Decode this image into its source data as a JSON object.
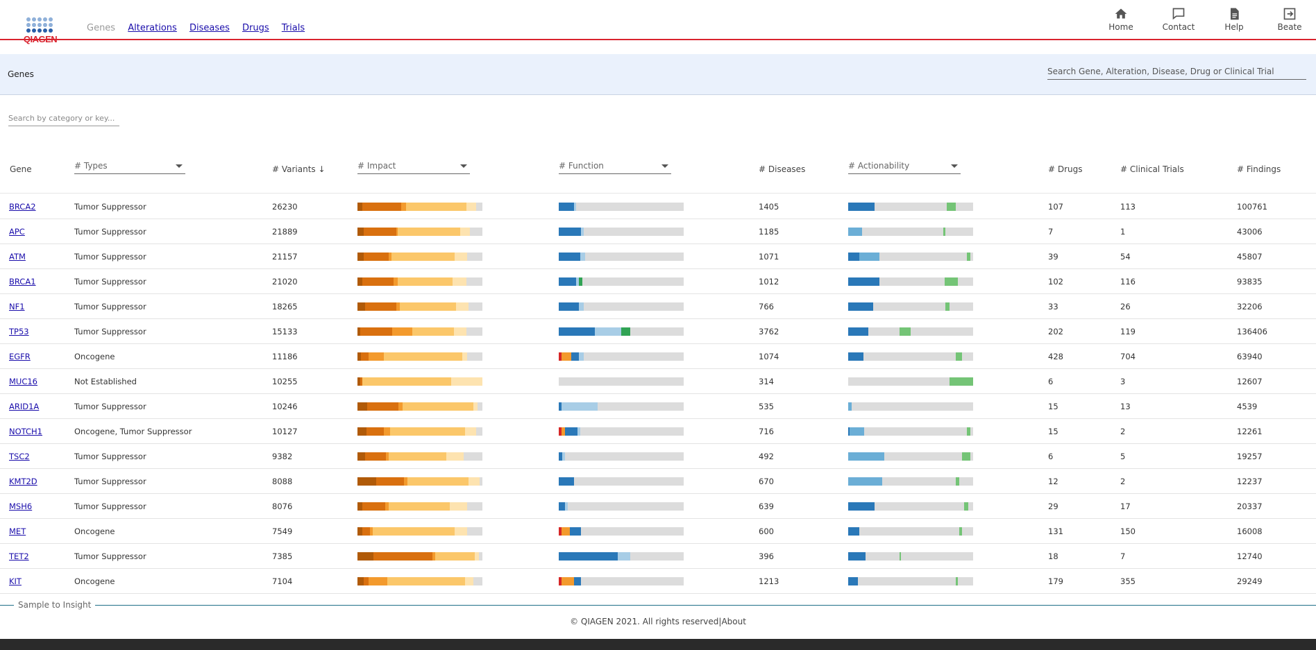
{
  "brand": {
    "logo_text": "QIAGEN",
    "accent": "#d9232e"
  },
  "nav": {
    "current": "Genes",
    "links": [
      "Alterations",
      "Diseases",
      "Drugs",
      "Trials"
    ]
  },
  "top_actions": [
    {
      "label": "Home",
      "icon": "home-icon"
    },
    {
      "label": "Contact",
      "icon": "chat-icon"
    },
    {
      "label": "Help",
      "icon": "document-icon"
    },
    {
      "label": "Beate",
      "icon": "logout-icon"
    }
  ],
  "subheader": {
    "title": "Genes",
    "search_placeholder": "Search Gene, Alteration, Disease, Drug or Clinical Trial"
  },
  "filter": {
    "placeholder": "Search by category or key..."
  },
  "table": {
    "columns": {
      "gene": "Gene",
      "types": "# Types",
      "variants": "# Variants",
      "impact": "# Impact",
      "function": "# Function",
      "diseases": "# Diseases",
      "actionability": "# Actionability",
      "drugs": "# Drugs",
      "trials": "# Clinical Trials",
      "findings": "# Findings"
    },
    "sort_indicator": "↓",
    "rows": [
      {
        "gene": "BRCA2",
        "type": "Tumor Suppressor",
        "variants": "26230",
        "diseases": "1405",
        "drugs": "107",
        "trials": "113",
        "findings": "100761",
        "impact": [
          [
            0.04,
            "#b05a08"
          ],
          [
            0.31,
            "#d9700f"
          ],
          [
            0.04,
            "#f39a2d"
          ],
          [
            0.48,
            "#fbc76a"
          ],
          [
            0.08,
            "#fde3b0"
          ]
        ],
        "function": [
          [
            0.12,
            "#2a78b8"
          ],
          [
            0.02,
            "#a8cde6"
          ]
        ],
        "action": [
          [
            0.21,
            "#2a78b8"
          ],
          [
            0.58,
            "#dcdcdc"
          ],
          [
            0.07,
            "#74c476"
          ]
        ]
      },
      {
        "gene": "APC",
        "type": "Tumor Suppressor",
        "variants": "21889",
        "diseases": "1185",
        "drugs": "7",
        "trials": "1",
        "findings": "43006",
        "impact": [
          [
            0.05,
            "#b05a08"
          ],
          [
            0.26,
            "#d9700f"
          ],
          [
            0.01,
            "#f39a2d"
          ],
          [
            0.5,
            "#fbc76a"
          ],
          [
            0.08,
            "#fde3b0"
          ]
        ],
        "function": [
          [
            0.18,
            "#2a78b8"
          ],
          [
            0.02,
            "#a8cde6"
          ]
        ],
        "action": [
          [
            0.11,
            "#6baed6"
          ],
          [
            0.65,
            "#dcdcdc"
          ],
          [
            0.02,
            "#74c476"
          ]
        ]
      },
      {
        "gene": "ATM",
        "type": "Tumor Suppressor",
        "variants": "21157",
        "diseases": "1071",
        "drugs": "39",
        "trials": "54",
        "findings": "45807",
        "impact": [
          [
            0.05,
            "#b05a08"
          ],
          [
            0.2,
            "#d9700f"
          ],
          [
            0.02,
            "#f39a2d"
          ],
          [
            0.51,
            "#fbc76a"
          ],
          [
            0.1,
            "#fde3b0"
          ]
        ],
        "function": [
          [
            0.17,
            "#2a78b8"
          ],
          [
            0.04,
            "#a8cde6"
          ]
        ],
        "action": [
          [
            0.09,
            "#2a78b8"
          ],
          [
            0.16,
            "#6baed6"
          ],
          [
            0.7,
            "#dcdcdc"
          ],
          [
            0.03,
            "#74c476"
          ]
        ]
      },
      {
        "gene": "BRCA1",
        "type": "Tumor Suppressor",
        "variants": "21020",
        "diseases": "1012",
        "drugs": "102",
        "trials": "116",
        "findings": "93835",
        "impact": [
          [
            0.04,
            "#b05a08"
          ],
          [
            0.25,
            "#d9700f"
          ],
          [
            0.03,
            "#f39a2d"
          ],
          [
            0.44,
            "#fbc76a"
          ],
          [
            0.11,
            "#fde3b0"
          ]
        ],
        "function": [
          [
            0.14,
            "#2a78b8"
          ],
          [
            0.02,
            "#a8cde6"
          ],
          [
            0.03,
            "#31a354"
          ]
        ],
        "action": [
          [
            0.25,
            "#2a78b8"
          ],
          [
            0.52,
            "#dcdcdc"
          ],
          [
            0.11,
            "#74c476"
          ]
        ]
      },
      {
        "gene": "NF1",
        "type": "Tumor Suppressor",
        "variants": "18265",
        "diseases": "766",
        "drugs": "33",
        "trials": "26",
        "findings": "32206",
        "impact": [
          [
            0.06,
            "#b05a08"
          ],
          [
            0.25,
            "#d9700f"
          ],
          [
            0.03,
            "#f39a2d"
          ],
          [
            0.45,
            "#fbc76a"
          ],
          [
            0.1,
            "#fde3b0"
          ]
        ],
        "function": [
          [
            0.16,
            "#2a78b8"
          ],
          [
            0.04,
            "#a8cde6"
          ]
        ],
        "action": [
          [
            0.2,
            "#2a78b8"
          ],
          [
            0.58,
            "#dcdcdc"
          ],
          [
            0.03,
            "#74c476"
          ]
        ]
      },
      {
        "gene": "TP53",
        "type": "Tumor Suppressor",
        "variants": "15133",
        "diseases": "3762",
        "drugs": "202",
        "trials": "119",
        "findings": "136406",
        "impact": [
          [
            0.02,
            "#b05a08"
          ],
          [
            0.26,
            "#d9700f"
          ],
          [
            0.16,
            "#f39a2d"
          ],
          [
            0.33,
            "#fbc76a"
          ],
          [
            0.1,
            "#fde3b0"
          ]
        ],
        "function": [
          [
            0.29,
            "#2a78b8"
          ],
          [
            0.21,
            "#a8cde6"
          ],
          [
            0.07,
            "#31a354"
          ]
        ],
        "action": [
          [
            0.16,
            "#2a78b8"
          ],
          [
            0.25,
            "#dcdcdc"
          ],
          [
            0.09,
            "#74c476"
          ]
        ]
      },
      {
        "gene": "EGFR",
        "type": "Oncogene",
        "variants": "11186",
        "diseases": "1074",
        "drugs": "428",
        "trials": "704",
        "findings": "63940",
        "impact": [
          [
            0.03,
            "#b05a08"
          ],
          [
            0.06,
            "#d9700f"
          ],
          [
            0.12,
            "#f39a2d"
          ],
          [
            0.63,
            "#fbc76a"
          ],
          [
            0.04,
            "#fde3b0"
          ]
        ],
        "function": [
          [
            0.02,
            "#d62728"
          ],
          [
            0.08,
            "#f39a2d"
          ],
          [
            0.06,
            "#2a78b8"
          ],
          [
            0.04,
            "#a8cde6"
          ]
        ],
        "action": [
          [
            0.12,
            "#2a78b8"
          ],
          [
            0.74,
            "#dcdcdc"
          ],
          [
            0.05,
            "#74c476"
          ]
        ]
      },
      {
        "gene": "MUC16",
        "type": "Not Established",
        "variants": "10255",
        "diseases": "314",
        "drugs": "6",
        "trials": "3",
        "findings": "12607",
        "impact": [
          [
            0.02,
            "#b05a08"
          ],
          [
            0.02,
            "#d9700f"
          ],
          [
            0.71,
            "#fbc76a"
          ],
          [
            0.25,
            "#fde3b0"
          ]
        ],
        "function": [],
        "action": [
          [
            0.81,
            "#dcdcdc"
          ],
          [
            0.19,
            "#74c476"
          ]
        ]
      },
      {
        "gene": "ARID1A",
        "type": "Tumor Suppressor",
        "variants": "10246",
        "diseases": "535",
        "drugs": "15",
        "trials": "13",
        "findings": "4539",
        "impact": [
          [
            0.08,
            "#b05a08"
          ],
          [
            0.25,
            "#d9700f"
          ],
          [
            0.03,
            "#f39a2d"
          ],
          [
            0.57,
            "#fbc76a"
          ],
          [
            0.03,
            "#fde3b0"
          ]
        ],
        "function": [
          [
            0.02,
            "#2a78b8"
          ],
          [
            0.29,
            "#a8cde6"
          ]
        ],
        "action": [
          [
            0.03,
            "#6baed6"
          ],
          [
            0.95,
            "#dcdcdc"
          ]
        ]
      },
      {
        "gene": "NOTCH1",
        "type": "Oncogene, Tumor Suppressor",
        "variants": "10127",
        "diseases": "716",
        "drugs": "15",
        "trials": "2",
        "findings": "12261",
        "impact": [
          [
            0.07,
            "#b05a08"
          ],
          [
            0.14,
            "#d9700f"
          ],
          [
            0.05,
            "#f39a2d"
          ],
          [
            0.6,
            "#fbc76a"
          ],
          [
            0.09,
            "#fde3b0"
          ]
        ],
        "function": [
          [
            0.02,
            "#d62728"
          ],
          [
            0.03,
            "#f39a2d"
          ],
          [
            0.1,
            "#2a78b8"
          ],
          [
            0.02,
            "#a8cde6"
          ]
        ],
        "action": [
          [
            0.01,
            "#2a78b8"
          ],
          [
            0.12,
            "#6baed6"
          ],
          [
            0.82,
            "#dcdcdc"
          ],
          [
            0.03,
            "#74c476"
          ]
        ]
      },
      {
        "gene": "TSC2",
        "type": "Tumor Suppressor",
        "variants": "9382",
        "diseases": "492",
        "drugs": "6",
        "trials": "5",
        "findings": "19257",
        "impact": [
          [
            0.06,
            "#b05a08"
          ],
          [
            0.17,
            "#d9700f"
          ],
          [
            0.02,
            "#f39a2d"
          ],
          [
            0.46,
            "#fbc76a"
          ],
          [
            0.14,
            "#fde3b0"
          ]
        ],
        "function": [
          [
            0.03,
            "#2a78b8"
          ],
          [
            0.02,
            "#a8cde6"
          ]
        ],
        "action": [
          [
            0.29,
            "#6baed6"
          ],
          [
            0.62,
            "#dcdcdc"
          ],
          [
            0.07,
            "#74c476"
          ]
        ]
      },
      {
        "gene": "KMT2D",
        "type": "Tumor Suppressor",
        "variants": "8088",
        "diseases": "670",
        "drugs": "12",
        "trials": "2",
        "findings": "12237",
        "impact": [
          [
            0.15,
            "#b05a08"
          ],
          [
            0.22,
            "#d9700f"
          ],
          [
            0.03,
            "#f39a2d"
          ],
          [
            0.49,
            "#fbc76a"
          ],
          [
            0.09,
            "#fde3b0"
          ]
        ],
        "function": [
          [
            0.12,
            "#2a78b8"
          ]
        ],
        "action": [
          [
            0.27,
            "#6baed6"
          ],
          [
            0.59,
            "#dcdcdc"
          ],
          [
            0.03,
            "#74c476"
          ]
        ]
      },
      {
        "gene": "MSH6",
        "type": "Tumor Suppressor",
        "variants": "8076",
        "diseases": "639",
        "drugs": "29",
        "trials": "17",
        "findings": "20337",
        "impact": [
          [
            0.04,
            "#b05a08"
          ],
          [
            0.18,
            "#d9700f"
          ],
          [
            0.03,
            "#f39a2d"
          ],
          [
            0.49,
            "#fbc76a"
          ],
          [
            0.14,
            "#fde3b0"
          ]
        ],
        "function": [
          [
            0.05,
            "#2a78b8"
          ],
          [
            0.02,
            "#a8cde6"
          ]
        ],
        "action": [
          [
            0.21,
            "#2a78b8"
          ],
          [
            0.72,
            "#dcdcdc"
          ],
          [
            0.03,
            "#74c476"
          ]
        ]
      },
      {
        "gene": "MET",
        "type": "Oncogene",
        "variants": "7549",
        "diseases": "600",
        "drugs": "131",
        "trials": "150",
        "findings": "16008",
        "impact": [
          [
            0.04,
            "#b05a08"
          ],
          [
            0.06,
            "#d9700f"
          ],
          [
            0.02,
            "#f39a2d"
          ],
          [
            0.66,
            "#fbc76a"
          ],
          [
            0.1,
            "#fde3b0"
          ]
        ],
        "function": [
          [
            0.02,
            "#d62728"
          ],
          [
            0.07,
            "#f39a2d"
          ],
          [
            0.09,
            "#2a78b8"
          ]
        ],
        "action": [
          [
            0.09,
            "#2a78b8"
          ],
          [
            0.8,
            "#dcdcdc"
          ],
          [
            0.02,
            "#74c476"
          ]
        ]
      },
      {
        "gene": "TET2",
        "type": "Tumor Suppressor",
        "variants": "7385",
        "diseases": "396",
        "drugs": "18",
        "trials": "7",
        "findings": "12740",
        "impact": [
          [
            0.13,
            "#b05a08"
          ],
          [
            0.47,
            "#d9700f"
          ],
          [
            0.02,
            "#f39a2d"
          ],
          [
            0.32,
            "#fbc76a"
          ],
          [
            0.03,
            "#fde3b0"
          ]
        ],
        "function": [
          [
            0.47,
            "#2a78b8"
          ],
          [
            0.1,
            "#a8cde6"
          ]
        ],
        "action": [
          [
            0.14,
            "#2a78b8"
          ],
          [
            0.27,
            "#dcdcdc"
          ],
          [
            0.01,
            "#74c476"
          ]
        ]
      },
      {
        "gene": "KIT",
        "type": "Oncogene",
        "variants": "7104",
        "diseases": "1213",
        "drugs": "179",
        "trials": "355",
        "findings": "29249",
        "impact": [
          [
            0.05,
            "#b05a08"
          ],
          [
            0.04,
            "#d9700f"
          ],
          [
            0.15,
            "#f39a2d"
          ],
          [
            0.62,
            "#fbc76a"
          ],
          [
            0.07,
            "#fde3b0"
          ]
        ],
        "function": [
          [
            0.02,
            "#d62728"
          ],
          [
            0.1,
            "#f39a2d"
          ],
          [
            0.06,
            "#2a78b8"
          ]
        ],
        "action": [
          [
            0.08,
            "#2a78b8"
          ],
          [
            0.78,
            "#dcdcdc"
          ],
          [
            0.02,
            "#74c476"
          ]
        ]
      }
    ]
  },
  "footer": {
    "tag": "Sample to Insight",
    "copyright": "© QIAGEN 2021. All rights reserved",
    "about": "About"
  }
}
